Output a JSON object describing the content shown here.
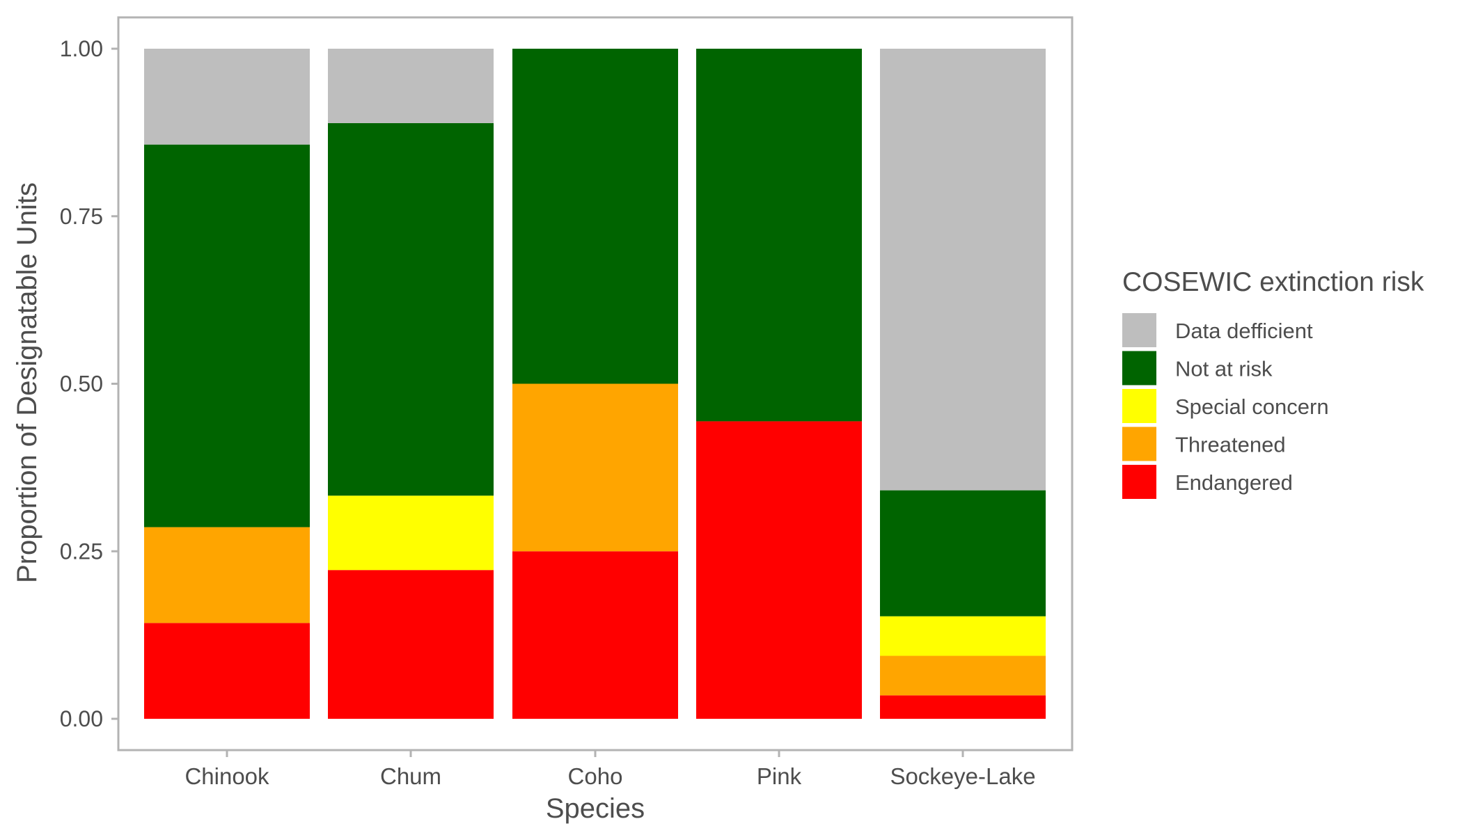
{
  "chart_data": {
    "type": "bar",
    "stacked": true,
    "xlabel": "Species",
    "ylabel": "Proportion of Designatable Units",
    "ylim": [
      0,
      1
    ],
    "yticks": [
      "0.00",
      "0.25",
      "0.50",
      "0.75",
      "1.00"
    ],
    "grid": false,
    "legend_position": "right",
    "legend_title": "COSEWIC extinction risk",
    "categories": [
      "Chinook",
      "Chum",
      "Coho",
      "Pink",
      "Sockeye-Lake"
    ],
    "series": [
      {
        "name": "Endangered",
        "color": "#ff0000",
        "values": [
          0.143,
          0.222,
          0.25,
          0.444,
          0.035
        ]
      },
      {
        "name": "Threatened",
        "color": "#ffa500",
        "values": [
          0.143,
          0.0,
          0.25,
          0.0,
          0.059
        ]
      },
      {
        "name": "Special concern",
        "color": "#ffff00",
        "values": [
          0.0,
          0.111,
          0.0,
          0.0,
          0.059
        ]
      },
      {
        "name": "Not at risk",
        "color": "#006400",
        "values": [
          0.571,
          0.556,
          0.5,
          0.556,
          0.188
        ]
      },
      {
        "name": "Data defficient",
        "color": "#bebebe",
        "values": [
          0.143,
          0.111,
          0.0,
          0.0,
          0.659
        ]
      }
    ],
    "legend_order": [
      "Data defficient",
      "Not at risk",
      "Special concern",
      "Threatened",
      "Endangered"
    ]
  }
}
